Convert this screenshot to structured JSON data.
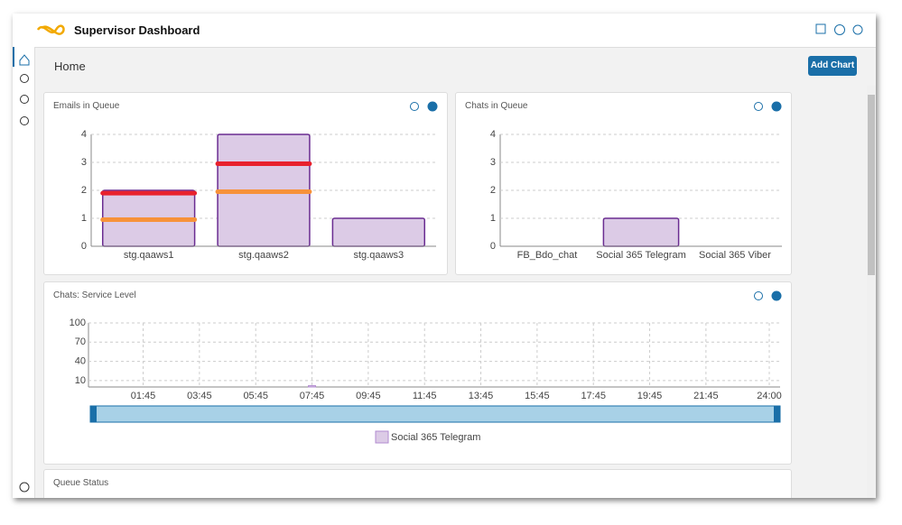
{
  "header": {
    "title": "Supervisor Dashboard"
  },
  "page": {
    "title": "Home",
    "button": "Add Chart"
  },
  "chart_data": [
    {
      "type": "bar",
      "title": "Emails in Queue",
      "categories": [
        "stg.qaaws1",
        "stg.qaaws2",
        "stg.qaaws3"
      ],
      "values": [
        2,
        4,
        1
      ],
      "color": "#dccbe6",
      "border_color": "#6a2c91",
      "threshold_lines": [
        {
          "color": "#e8212d",
          "values": [
            1.9,
            2.95,
            null
          ]
        },
        {
          "color": "#f7923a",
          "values": [
            0.95,
            1.95,
            null
          ]
        }
      ],
      "ylim": [
        0,
        4
      ],
      "yticks": [
        0,
        1,
        2,
        3,
        4
      ],
      "grid": true
    },
    {
      "type": "bar",
      "title": "Chats in Queue",
      "categories": [
        "FB_Bdo_chat",
        "Social 365 Telegram",
        "Social 365 Viber"
      ],
      "values": [
        0,
        1,
        0
      ],
      "color": "#dccbe6",
      "border_color": "#6a2c91",
      "ylim": [
        0,
        4
      ],
      "yticks": [
        0,
        1,
        2,
        3,
        4
      ],
      "grid": true
    },
    {
      "type": "timeline",
      "title": "Chats: Service Level",
      "series": [
        {
          "name": "Social 365 Telegram",
          "color": "#dccbe6",
          "x": [
            465
          ],
          "values": [
            2
          ]
        }
      ],
      "xlim": [
        0,
        1440
      ],
      "xticks": [
        {
          "value": 105,
          "label": "01:45"
        },
        {
          "value": 225,
          "label": "03:45"
        },
        {
          "value": 345,
          "label": "05:45"
        },
        {
          "value": 465,
          "label": "07:45"
        },
        {
          "value": 585,
          "label": "09:45"
        },
        {
          "value": 705,
          "label": "11:45"
        },
        {
          "value": 825,
          "label": "13:45"
        },
        {
          "value": 945,
          "label": "15:45"
        },
        {
          "value": 1065,
          "label": "17:45"
        },
        {
          "value": 1185,
          "label": "19:45"
        },
        {
          "value": 1305,
          "label": "21:45"
        },
        {
          "value": 1440,
          "label": "24:00"
        }
      ],
      "ylim": [
        0,
        100
      ],
      "yticks": [
        10,
        40,
        70,
        100
      ],
      "grid": true
    }
  ],
  "queue_status": {
    "title": "Queue Status"
  }
}
